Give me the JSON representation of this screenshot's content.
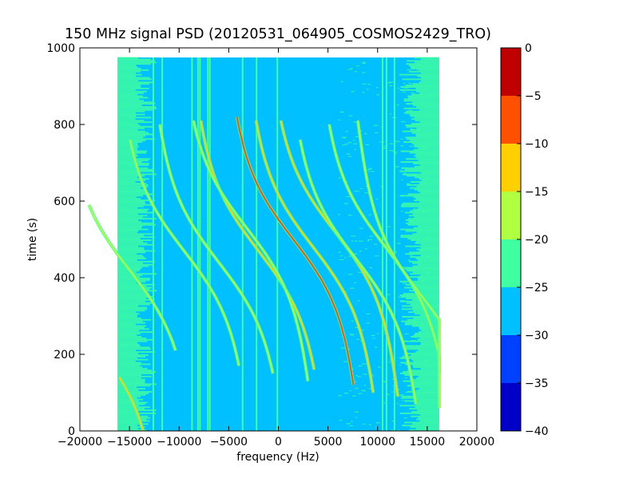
{
  "chart_data": {
    "type": "heatmap",
    "title": "150 MHz signal PSD (20120531_064905_COSMOS2429_TRO)",
    "xlabel": "frequency (Hz)",
    "ylabel": "time (s)",
    "xlim": [
      -20000,
      20000
    ],
    "ylim": [
      0,
      1000
    ],
    "x_ticks": [
      -20000,
      -15000,
      -10000,
      -5000,
      0,
      5000,
      10000,
      15000,
      20000
    ],
    "x_tick_labels": [
      "−20000",
      "−15000",
      "−10000",
      "−5000",
      "0",
      "5000",
      "10000",
      "15000",
      "20000"
    ],
    "y_ticks": [
      0,
      200,
      400,
      600,
      800,
      1000
    ],
    "y_tick_labels": [
      "0",
      "200",
      "400",
      "600",
      "800",
      "1000"
    ],
    "data_extent": {
      "freq": [
        -16200,
        16200
      ],
      "time": [
        0,
        975
      ]
    },
    "colorbar": {
      "levels": [
        -40,
        -35,
        -30,
        -25,
        -20,
        -15,
        -10,
        -5,
        0
      ],
      "tick_labels": [
        "−40",
        "−35",
        "−30",
        "−25",
        "−20",
        "−15",
        "−10",
        "−5",
        "0"
      ],
      "colors": [
        "#0000c8",
        "#0040ff",
        "#00c0ff",
        "#40ffa0",
        "#b0ff40",
        "#ffd000",
        "#ff5000",
        "#c00000"
      ]
    },
    "background_level_color": "#00c0ff",
    "noise_edge_color": "#40ffa0",
    "vertical_lines_hz": [
      {
        "f": -12600,
        "t": [
          0,
          975
        ],
        "color": "#40ffa0"
      },
      {
        "f": -11700,
        "t": [
          0,
          975
        ],
        "color": "#40ffa0"
      },
      {
        "f": -8700,
        "t": [
          0,
          975
        ],
        "color": "#40ffa0"
      },
      {
        "f": -8100,
        "t": [
          0,
          975
        ],
        "color": "#40ffa0"
      },
      {
        "f": -7900,
        "t": [
          0,
          975
        ],
        "color": "#40ffa0"
      },
      {
        "f": -7100,
        "t": [
          0,
          975
        ],
        "color": "#40ffa0"
      },
      {
        "f": -6900,
        "t": [
          0,
          975
        ],
        "color": "#40ffa0"
      },
      {
        "f": -3600,
        "t": [
          0,
          975
        ],
        "color": "#40ffa0"
      },
      {
        "f": -2200,
        "t": [
          0,
          975
        ],
        "color": "#40ffa0"
      },
      {
        "f": -100,
        "t": [
          0,
          975
        ],
        "color": "#40ffa0"
      },
      {
        "f": 10500,
        "t": [
          0,
          975
        ],
        "color": "#40ffa0"
      },
      {
        "f": 10900,
        "t": [
          0,
          975
        ],
        "color": "#40ffa0"
      },
      {
        "f": 11700,
        "t": [
          0,
          975
        ],
        "color": "#40ffa0"
      }
    ],
    "doppler_tracks": [
      {
        "fc": -15000,
        "tc": 420,
        "width": 9000,
        "tmin": 210,
        "tmax": 590,
        "color": "#b0ff40"
      },
      {
        "fc": -9500,
        "tc": 470,
        "width": 9000,
        "tmin": 170,
        "tmax": 760,
        "color": "#b0ff40"
      },
      {
        "fc": -6000,
        "tc": 440,
        "width": 9000,
        "tmin": 150,
        "tmax": 800,
        "color": "#b0ff40"
      },
      {
        "fc": -2000,
        "tc": 470,
        "width": 9000,
        "tmin": 160,
        "tmax": 810,
        "color": "#ffd000"
      },
      {
        "fc": -3200,
        "tc": 530,
        "width": 9000,
        "tmin": 130,
        "tmax": 810,
        "color": "#b0ff40"
      },
      {
        "fc": 1500,
        "tc": 500,
        "width": 9000,
        "tmin": 120,
        "tmax": 820,
        "color": "#ff5000"
      },
      {
        "fc": 3500,
        "tc": 480,
        "width": 9000,
        "tmin": 100,
        "tmax": 810,
        "color": "#ffd000"
      },
      {
        "fc": 5700,
        "tc": 520,
        "width": 9000,
        "tmin": 90,
        "tmax": 810,
        "color": "#ffd000"
      },
      {
        "fc": 7800,
        "tc": 450,
        "width": 9000,
        "tmin": 70,
        "tmax": 760,
        "color": "#b0ff40"
      },
      {
        "fc": 10800,
        "tc": 480,
        "width": 9000,
        "tmin": 60,
        "tmax": 800,
        "color": "#b0ff40"
      },
      {
        "fc": 14500,
        "tc": 350,
        "width": 9000,
        "tmin": 150,
        "tmax": 810,
        "color": "#b0ff40"
      },
      {
        "fc": -18500,
        "tc": 230,
        "width": 9000,
        "tmin": 0,
        "tmax": 140,
        "color": "#ffd000"
      }
    ],
    "grid": false,
    "legend": "colorbar-right"
  }
}
